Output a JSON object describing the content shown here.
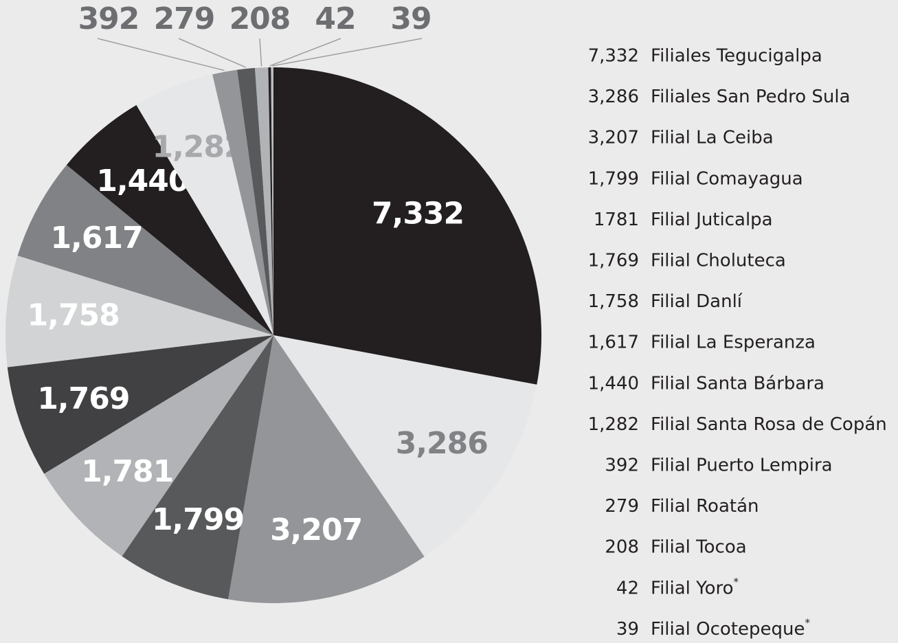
{
  "chart_data": {
    "type": "pie",
    "categories": [
      "Filiales Tegucigalpa",
      "Filiales San Pedro Sula",
      "Filial La Ceiba",
      "Filial Comayagua",
      "Filial Juticalpa",
      "Filial Choluteca",
      "Filial Danlí",
      "Filial La Esperanza",
      "Filial Santa Bárbara",
      "Filial Santa Rosa de Copán",
      "Filial Puerto Lempira",
      "Filial Roatán",
      "Filial Tocoa",
      "Filial Yoro*",
      "Filial Ocotepeque*"
    ],
    "values": [
      7332,
      3286,
      3207,
      1799,
      1781,
      1769,
      1758,
      1617,
      1440,
      1282,
      392,
      279,
      208,
      42,
      39
    ],
    "value_labels": [
      "7,332",
      "3,286",
      "3,207",
      "1,799",
      "1,781",
      "1,769",
      "1,758",
      "1,617",
      "1,440",
      "1,282",
      "392",
      "279",
      "208",
      "42",
      "39"
    ],
    "legend_value_labels": [
      "7,332",
      "3,286",
      "3,207",
      "1,799",
      "1781",
      "1,769",
      "1,758",
      "1,617",
      "1,440",
      "1,282",
      "392",
      "279",
      "208",
      "42",
      "39"
    ],
    "colors": [
      "#231f20",
      "#e6e7e8",
      "#939598",
      "#58595b",
      "#b1b3b6",
      "#414042",
      "#d1d3d4",
      "#808285",
      "#231f20",
      "#e6e7e8",
      "#939598",
      "#58595b",
      "#b1b3b6",
      "#231f20",
      "#bcbec0"
    ],
    "label_colors": [
      "#ffffff",
      "#808285",
      "#ffffff",
      "#ffffff",
      "#ffffff",
      "#ffffff",
      "#ffffff",
      "#ffffff",
      "#ffffff",
      "#a7a9ac",
      "#6d6e71",
      "#6d6e71",
      "#6d6e71",
      "#6d6e71",
      "#6d6e71"
    ]
  }
}
